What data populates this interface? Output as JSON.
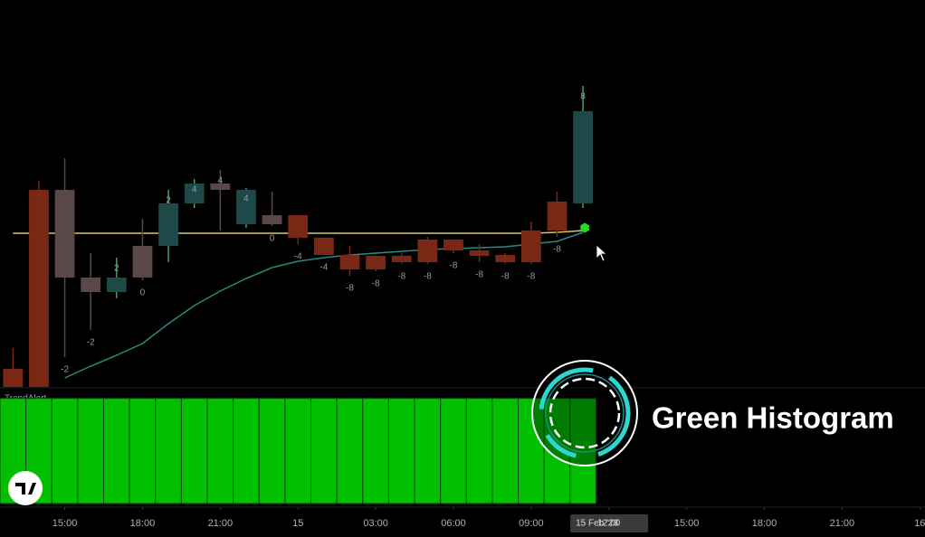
{
  "chart_data": {
    "type": "candlestick",
    "indicator_name": "TrendAlert",
    "overlay_title": "Green Histogram",
    "date_label": "15 Feb '23",
    "x": [
      0,
      1,
      2,
      3,
      4,
      5,
      6,
      7,
      8,
      9,
      10,
      11,
      12,
      13,
      14,
      15,
      16,
      17,
      18,
      19,
      20,
      21,
      22
    ],
    "xlim": [
      -0.5,
      35.2
    ],
    "xticks": [
      {
        "value": 2,
        "label": "15:00"
      },
      {
        "value": 5,
        "label": "18:00"
      },
      {
        "value": 8,
        "label": "21:00"
      },
      {
        "value": 11,
        "label": "15"
      },
      {
        "value": 14,
        "label": "03:00"
      },
      {
        "value": 17,
        "label": "06:00"
      },
      {
        "value": 20,
        "label": "09:00"
      },
      {
        "value": 23,
        "label": "12:00"
      },
      {
        "value": 26,
        "label": "15:00"
      },
      {
        "value": 29,
        "label": "18:00"
      },
      {
        "value": 32,
        "label": "21:00"
      },
      {
        "value": 35,
        "label": "16"
      }
    ],
    "ylim": [
      0,
      430
    ],
    "open": [
      22,
      220,
      220,
      123,
      107,
      123,
      158,
      205,
      227,
      220,
      192,
      192,
      167,
      148,
      147,
      147,
      165,
      165,
      153,
      148,
      175,
      207,
      205
    ],
    "high": [
      45,
      230,
      255,
      150,
      145,
      188,
      220,
      232,
      242,
      222,
      218,
      192,
      167,
      158,
      147,
      150,
      168,
      165,
      160,
      150,
      185,
      218,
      335
    ],
    "low": [
      2,
      2,
      35,
      65,
      100,
      120,
      140,
      200,
      175,
      178,
      180,
      160,
      148,
      125,
      130,
      138,
      138,
      150,
      140,
      138,
      138,
      168,
      200
    ],
    "close": [
      2,
      2,
      123,
      107,
      123,
      158,
      205,
      227,
      220,
      182,
      182,
      167,
      148,
      132,
      132,
      140,
      140,
      153,
      147,
      140,
      140,
      175,
      307
    ],
    "candle_colors": [
      "#7a2816",
      "#7a2816",
      "#5a4848",
      "#5a4848",
      "#1d4a48",
      "#5a4848",
      "#1d4a48",
      "#1d4a48",
      "#5a4848",
      "#1d4a48",
      "#5a4848",
      "#7a2816",
      "#7a2816",
      "#7a2816",
      "#7a2816",
      "#7a2816",
      "#7a2816",
      "#7a2816",
      "#7a2816",
      "#7a2816",
      "#7a2816",
      "#7a2816",
      "#1d4a48"
    ],
    "candle_labels": [
      null,
      null,
      -2,
      -2,
      2,
      0,
      2,
      4,
      4,
      4,
      0,
      -4,
      -4,
      -8,
      -8,
      -8,
      -8,
      -8,
      -8,
      -8,
      -8,
      -8,
      8
    ],
    "lines": [
      {
        "color": "#d8c86a",
        "values": [
          172,
          172,
          172,
          172,
          172,
          172,
          172,
          172,
          172,
          172,
          172,
          172,
          172,
          172,
          172,
          172,
          172,
          172,
          172,
          172,
          172,
          173,
          175
        ]
      },
      {
        "color": "#2a8a80",
        "values": [
          null,
          null,
          12,
          25,
          37,
          50,
          72,
          92,
          108,
          122,
          134,
          141,
          145,
          148,
          150,
          152,
          154,
          155,
          156,
          157,
          160,
          163,
          173
        ]
      }
    ],
    "signal_marker": {
      "x": 22,
      "value": 178,
      "color": "#22dd22"
    },
    "histogram": {
      "color": "#00c000",
      "ylim": [
        0,
        1.1
      ],
      "values": [
        1,
        1,
        1,
        1,
        1,
        1,
        1,
        1,
        1,
        1,
        1,
        1,
        1,
        1,
        1,
        1,
        1,
        1,
        1,
        1,
        1,
        1,
        1
      ]
    }
  }
}
